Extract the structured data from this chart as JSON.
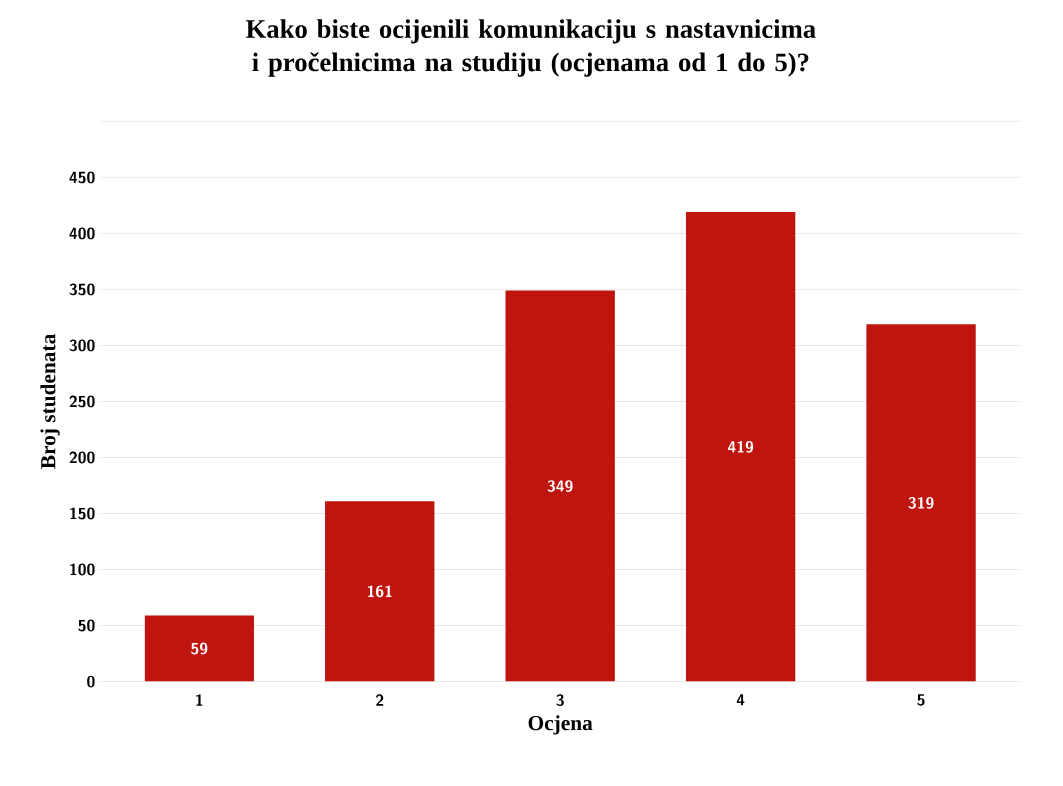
{
  "chart_data": {
    "type": "bar",
    "title": "Kako biste ocijenili komunikaciju s nastavnicima i pročelnicima na studiju (ocjenama od 1 do 5)?",
    "xlabel": "Ocjena",
    "ylabel": "Broj studenata",
    "categories": [
      "1",
      "2",
      "3",
      "4",
      "5"
    ],
    "values": [
      59,
      161,
      349,
      419,
      319
    ],
    "color": "#c0140f",
    "data_labels": true,
    "ylim": [
      0,
      500
    ],
    "yticks": [
      0,
      50,
      100,
      150,
      200,
      250,
      300,
      350,
      400,
      450,
      {
        "value": 500,
        "label": null
      }
    ],
    "grid": "y"
  }
}
